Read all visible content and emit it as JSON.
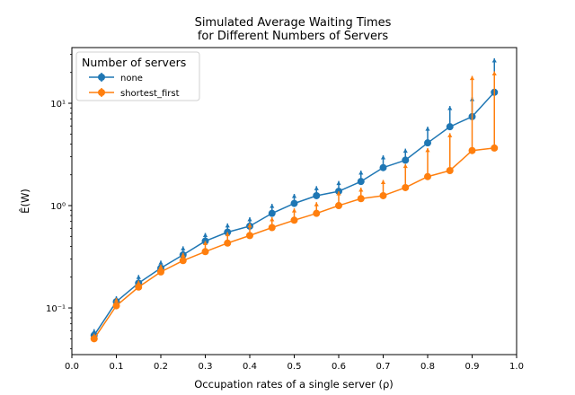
{
  "chart_data": {
    "type": "line",
    "title_line1": "Simulated Average Waiting Times",
    "title_line2": "for Different Numbers of Servers",
    "xlabel": "Occupation rates of a single server (ρ)",
    "ylabel": "Ê(W)",
    "xlim": [
      0.0,
      1.0
    ],
    "ylim": [
      0.035,
      35
    ],
    "yscale": "log",
    "x_ticks": [
      0.0,
      0.1,
      0.2,
      0.3,
      0.4,
      0.5,
      0.6,
      0.7,
      0.8,
      0.9,
      1.0
    ],
    "x_tick_labels": [
      "0.0",
      "0.1",
      "0.2",
      "0.3",
      "0.4",
      "0.5",
      "0.6",
      "0.7",
      "0.8",
      "0.9",
      "1.0"
    ],
    "y_ticks": [
      0.1,
      1,
      10
    ],
    "y_tick_labels": [
      "10⁻¹",
      "10⁰",
      "10¹"
    ],
    "grid": false,
    "legend": {
      "title": "Number of servers",
      "placement": "top-left"
    },
    "x": [
      0.05,
      0.1,
      0.15,
      0.2,
      0.25,
      0.3,
      0.35,
      0.4,
      0.45,
      0.5,
      0.55,
      0.6,
      0.65,
      0.7,
      0.75,
      0.8,
      0.85,
      0.9,
      0.95
    ],
    "series": [
      {
        "name": "none",
        "color": "#1f77b4",
        "values": [
          0.054,
          0.115,
          0.175,
          0.245,
          0.33,
          0.45,
          0.55,
          0.63,
          0.84,
          1.05,
          1.25,
          1.38,
          1.72,
          2.35,
          2.78,
          4.1,
          5.9,
          7.4,
          12.8
        ],
        "upper": [
          0.062,
          0.13,
          0.21,
          0.29,
          0.4,
          0.54,
          0.67,
          0.77,
          1.04,
          1.3,
          1.55,
          1.74,
          2.2,
          3.1,
          3.6,
          5.9,
          9.4,
          11.5,
          27.5
        ]
      },
      {
        "name": "shortest_first",
        "color": "#ff7f0e",
        "values": [
          0.05,
          0.105,
          0.16,
          0.225,
          0.29,
          0.355,
          0.43,
          0.51,
          0.61,
          0.72,
          0.84,
          1.0,
          1.17,
          1.25,
          1.5,
          1.92,
          2.2,
          3.45,
          3.65
        ],
        "upper": [
          0.056,
          0.125,
          0.185,
          0.265,
          0.345,
          0.45,
          0.55,
          0.67,
          0.77,
          0.94,
          1.08,
          1.38,
          1.5,
          1.78,
          2.55,
          3.65,
          5.1,
          18.5,
          20.5
        ]
      }
    ]
  }
}
